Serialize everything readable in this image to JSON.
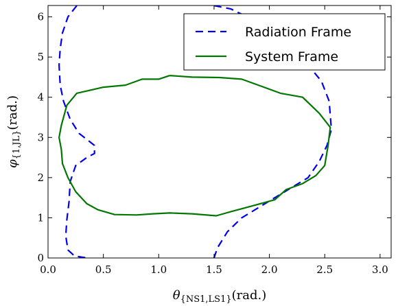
{
  "chart_data": {
    "type": "line",
    "xlabel": "θ",
    "xlabel_subscript": "{NS1,LS1}",
    "xlabel_unit": "(rad.)",
    "ylabel": "φ",
    "ylabel_subscript": "{1,JL}",
    "ylabel_unit": "(rad.)",
    "xlim": [
      0,
      3.1
    ],
    "ylim": [
      0,
      6.283
    ],
    "xticks": [
      "0.0",
      "0.5",
      "1.0",
      "1.5",
      "2.0",
      "2.5",
      "3.0"
    ],
    "yticks": [
      "0",
      "1",
      "2",
      "3",
      "4",
      "5",
      "6"
    ],
    "legend_position": "top-right",
    "series": [
      {
        "name": "Radiation Frame",
        "color": "#0000ee",
        "style": "dashed",
        "segments": [
          [
            [
              0.26,
              6.28
            ],
            [
              0.18,
              6.0
            ],
            [
              0.13,
              5.6
            ],
            [
              0.11,
              5.2
            ],
            [
              0.1,
              4.8
            ],
            [
              0.11,
              4.3
            ],
            [
              0.14,
              3.9
            ],
            [
              0.2,
              3.45
            ],
            [
              0.28,
              3.1
            ],
            [
              0.35,
              2.95
            ],
            [
              0.42,
              2.8
            ],
            [
              0.42,
              2.6
            ],
            [
              0.35,
              2.5
            ],
            [
              0.25,
              2.3
            ],
            [
              0.2,
              1.9
            ],
            [
              0.19,
              1.4
            ],
            [
              0.17,
              0.95
            ],
            [
              0.16,
              0.55
            ],
            [
              0.18,
              0.2
            ],
            [
              0.24,
              0.05
            ],
            [
              0.35,
              0.0
            ]
          ],
          [
            [
              1.5,
              6.28
            ],
            [
              1.65,
              6.2
            ],
            [
              1.8,
              6.0
            ],
            [
              2.0,
              5.65
            ],
            [
              2.2,
              5.25
            ],
            [
              2.35,
              4.8
            ],
            [
              2.47,
              4.4
            ],
            [
              2.54,
              3.9
            ],
            [
              2.56,
              3.2
            ],
            [
              2.52,
              2.8
            ],
            [
              2.45,
              2.4
            ],
            [
              2.35,
              2.0
            ],
            [
              2.2,
              1.75
            ],
            [
              2.05,
              1.5
            ],
            [
              1.9,
              1.25
            ],
            [
              1.75,
              1.0
            ],
            [
              1.62,
              0.65
            ],
            [
              1.53,
              0.25
            ],
            [
              1.5,
              0.0
            ]
          ]
        ]
      },
      {
        "name": "System Frame",
        "color": "#007700",
        "style": "solid",
        "segments": [
          [
            [
              1.1,
              4.54
            ],
            [
              1.3,
              4.5
            ],
            [
              1.55,
              4.49
            ],
            [
              1.75,
              4.45
            ],
            [
              1.9,
              4.3
            ],
            [
              2.1,
              4.1
            ],
            [
              2.3,
              4.0
            ],
            [
              2.45,
              3.6
            ],
            [
              2.55,
              3.25
            ],
            [
              2.53,
              2.8
            ],
            [
              2.5,
              2.3
            ],
            [
              2.42,
              2.05
            ],
            [
              2.3,
              1.85
            ],
            [
              2.15,
              1.7
            ],
            [
              2.05,
              1.45
            ],
            [
              1.85,
              1.3
            ],
            [
              1.65,
              1.15
            ],
            [
              1.52,
              1.05
            ],
            [
              1.3,
              1.1
            ],
            [
              1.1,
              1.12
            ],
            [
              0.95,
              1.1
            ],
            [
              0.8,
              1.07
            ],
            [
              0.6,
              1.08
            ],
            [
              0.45,
              1.2
            ],
            [
              0.35,
              1.35
            ],
            [
              0.25,
              1.65
            ],
            [
              0.18,
              2.0
            ],
            [
              0.13,
              2.35
            ],
            [
              0.12,
              2.7
            ],
            [
              0.1,
              3.0
            ],
            [
              0.12,
              3.3
            ],
            [
              0.17,
              3.8
            ],
            [
              0.26,
              4.1
            ],
            [
              0.5,
              4.25
            ],
            [
              0.7,
              4.3
            ],
            [
              0.85,
              4.45
            ],
            [
              1.0,
              4.45
            ],
            [
              1.1,
              4.54
            ]
          ]
        ]
      }
    ]
  }
}
